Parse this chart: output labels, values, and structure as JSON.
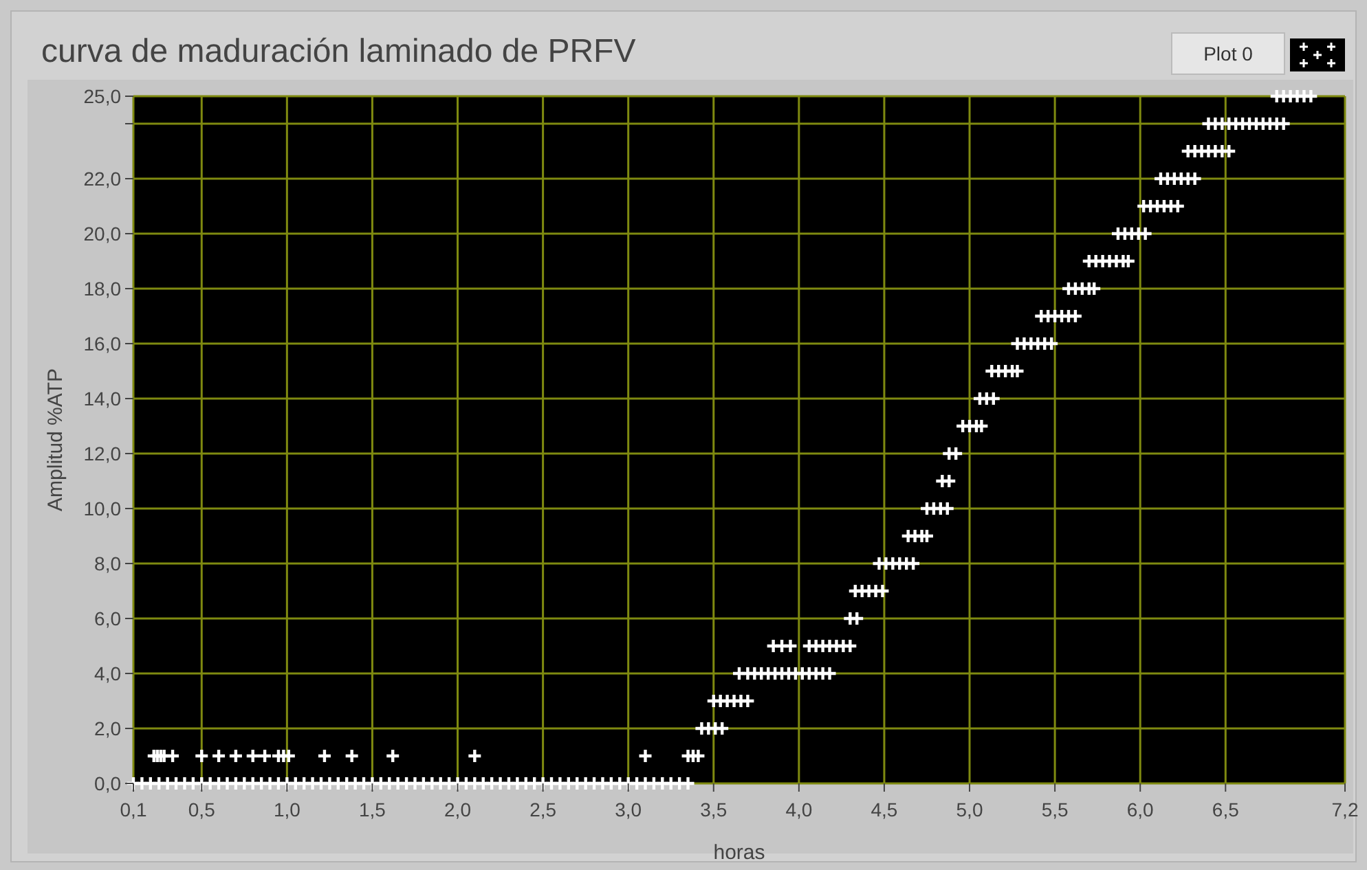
{
  "chart_data": {
    "type": "scatter",
    "title": "curva de maduración laminado de PRFV",
    "xlabel": "horas",
    "ylabel": "Amplitud %ATP",
    "xlim": [
      0.1,
      7.2
    ],
    "ylim": [
      0,
      25
    ],
    "xticks": [
      {
        "value": 0.1,
        "label": "0,1"
      },
      {
        "value": 0.5,
        "label": "0,5"
      },
      {
        "value": 1.0,
        "label": "1,0"
      },
      {
        "value": 1.5,
        "label": "1,5"
      },
      {
        "value": 2.0,
        "label": "2,0"
      },
      {
        "value": 2.5,
        "label": "2,5"
      },
      {
        "value": 3.0,
        "label": "3,0"
      },
      {
        "value": 3.5,
        "label": "3,5"
      },
      {
        "value": 4.0,
        "label": "4,0"
      },
      {
        "value": 4.5,
        "label": "4,5"
      },
      {
        "value": 5.0,
        "label": "5,0"
      },
      {
        "value": 5.5,
        "label": "5,5"
      },
      {
        "value": 6.0,
        "label": "6,0"
      },
      {
        "value": 6.5,
        "label": "6,5"
      },
      {
        "value": 7.2,
        "label": "7,2"
      }
    ],
    "yticks": [
      {
        "value": 0,
        "label": "0,0"
      },
      {
        "value": 2,
        "label": "2,0"
      },
      {
        "value": 4,
        "label": "4,0"
      },
      {
        "value": 6,
        "label": "6,0"
      },
      {
        "value": 8,
        "label": "8,0"
      },
      {
        "value": 10,
        "label": "10,0"
      },
      {
        "value": 12,
        "label": "12,0"
      },
      {
        "value": 14,
        "label": "14,0"
      },
      {
        "value": 16,
        "label": "16,0"
      },
      {
        "value": 18,
        "label": "18,0"
      },
      {
        "value": 20,
        "label": "20,0"
      },
      {
        "value": 22,
        "label": "22,0"
      },
      {
        "value": 24,
        "label": null
      },
      {
        "value": 25,
        "label": "25,0"
      }
    ],
    "grid": true,
    "legend": "top right",
    "marker": "cross",
    "series": [
      {
        "name": "Plot 0",
        "color": "#ffffff",
        "x": [
          0.1,
          0.15,
          0.2,
          0.25,
          0.3,
          0.35,
          0.4,
          0.45,
          0.5,
          0.55,
          0.6,
          0.65,
          0.7,
          0.75,
          0.8,
          0.85,
          0.9,
          0.95,
          1.0,
          1.05,
          1.1,
          1.15,
          1.2,
          1.25,
          1.3,
          1.35,
          1.4,
          1.45,
          1.5,
          1.55,
          1.6,
          1.65,
          1.7,
          1.75,
          1.8,
          1.85,
          1.9,
          1.95,
          2.0,
          2.05,
          2.1,
          2.15,
          2.2,
          2.25,
          2.3,
          2.35,
          2.4,
          2.45,
          2.5,
          2.55,
          2.6,
          2.65,
          2.7,
          2.75,
          2.8,
          2.85,
          2.9,
          2.95,
          3.0,
          3.05,
          3.1,
          3.15,
          3.2,
          3.25,
          3.3,
          3.35,
          0.22,
          0.24,
          0.26,
          0.28,
          0.33,
          0.5,
          0.6,
          0.7,
          0.8,
          0.87,
          0.95,
          0.98,
          1.01,
          1.22,
          1.38,
          1.62,
          2.1,
          3.1,
          3.35,
          3.38,
          3.41,
          3.43,
          3.47,
          3.51,
          3.55,
          3.5,
          3.54,
          3.58,
          3.62,
          3.66,
          3.7,
          3.65,
          3.7,
          3.74,
          3.78,
          3.82,
          3.86,
          3.9,
          3.94,
          3.98,
          4.02,
          4.06,
          4.1,
          4.14,
          4.18,
          3.85,
          3.9,
          3.95,
          4.06,
          4.1,
          4.14,
          4.18,
          4.22,
          4.26,
          4.3,
          4.3,
          4.34,
          4.33,
          4.37,
          4.41,
          4.45,
          4.49,
          4.47,
          4.51,
          4.55,
          4.59,
          4.63,
          4.67,
          4.64,
          4.68,
          4.72,
          4.75,
          4.75,
          4.79,
          4.83,
          4.87,
          4.84,
          4.88,
          4.88,
          4.92,
          4.96,
          5.0,
          5.04,
          5.07,
          5.06,
          5.1,
          5.14,
          5.13,
          5.17,
          5.21,
          5.25,
          5.28,
          5.28,
          5.32,
          5.36,
          5.4,
          5.44,
          5.48,
          5.42,
          5.46,
          5.5,
          5.54,
          5.58,
          5.62,
          5.58,
          5.62,
          5.66,
          5.7,
          5.73,
          5.7,
          5.74,
          5.78,
          5.82,
          5.86,
          5.9,
          5.93,
          5.87,
          5.91,
          5.95,
          5.99,
          6.03,
          6.02,
          6.06,
          6.1,
          6.14,
          6.18,
          6.22,
          6.12,
          6.16,
          6.2,
          6.24,
          6.28,
          6.32,
          6.28,
          6.32,
          6.36,
          6.4,
          6.44,
          6.48,
          6.52,
          6.4,
          6.44,
          6.48,
          6.52,
          6.56,
          6.6,
          6.64,
          6.68,
          6.72,
          6.76,
          6.8,
          6.84,
          6.8,
          6.84,
          6.88,
          6.92,
          6.96,
          7.0
        ],
        "values": [
          0,
          0,
          0,
          0,
          0,
          0,
          0,
          0,
          0,
          0,
          0,
          0,
          0,
          0,
          0,
          0,
          0,
          0,
          0,
          0,
          0,
          0,
          0,
          0,
          0,
          0,
          0,
          0,
          0,
          0,
          0,
          0,
          0,
          0,
          0,
          0,
          0,
          0,
          0,
          0,
          0,
          0,
          0,
          0,
          0,
          0,
          0,
          0,
          0,
          0,
          0,
          0,
          0,
          0,
          0,
          0,
          0,
          0,
          0,
          0,
          0,
          0,
          0,
          0,
          0,
          0,
          1,
          1,
          1,
          1,
          1,
          1,
          1,
          1,
          1,
          1,
          1,
          1,
          1,
          1,
          1,
          1,
          1,
          1,
          1,
          1,
          1,
          2,
          2,
          2,
          2,
          3,
          3,
          3,
          3,
          3,
          3,
          4,
          4,
          4,
          4,
          4,
          4,
          4,
          4,
          4,
          4,
          4,
          4,
          4,
          4,
          5,
          5,
          5,
          5,
          5,
          5,
          5,
          5,
          5,
          5,
          6,
          6,
          7,
          7,
          7,
          7,
          7,
          8,
          8,
          8,
          8,
          8,
          8,
          9,
          9,
          9,
          9,
          10,
          10,
          10,
          10,
          11,
          11,
          12,
          12,
          13,
          13,
          13,
          13,
          14,
          14,
          14,
          15,
          15,
          15,
          15,
          15,
          16,
          16,
          16,
          16,
          16,
          16,
          17,
          17,
          17,
          17,
          17,
          17,
          18,
          18,
          18,
          18,
          18,
          19,
          19,
          19,
          19,
          19,
          19,
          19,
          20,
          20,
          20,
          20,
          20,
          21,
          21,
          21,
          21,
          21,
          21,
          22,
          22,
          22,
          22,
          22,
          22,
          23,
          23,
          23,
          23,
          23,
          23,
          23,
          24,
          24,
          24,
          24,
          24,
          24,
          24,
          24,
          24,
          24,
          24,
          24,
          25,
          25,
          25,
          25,
          25,
          25
        ]
      }
    ]
  }
}
